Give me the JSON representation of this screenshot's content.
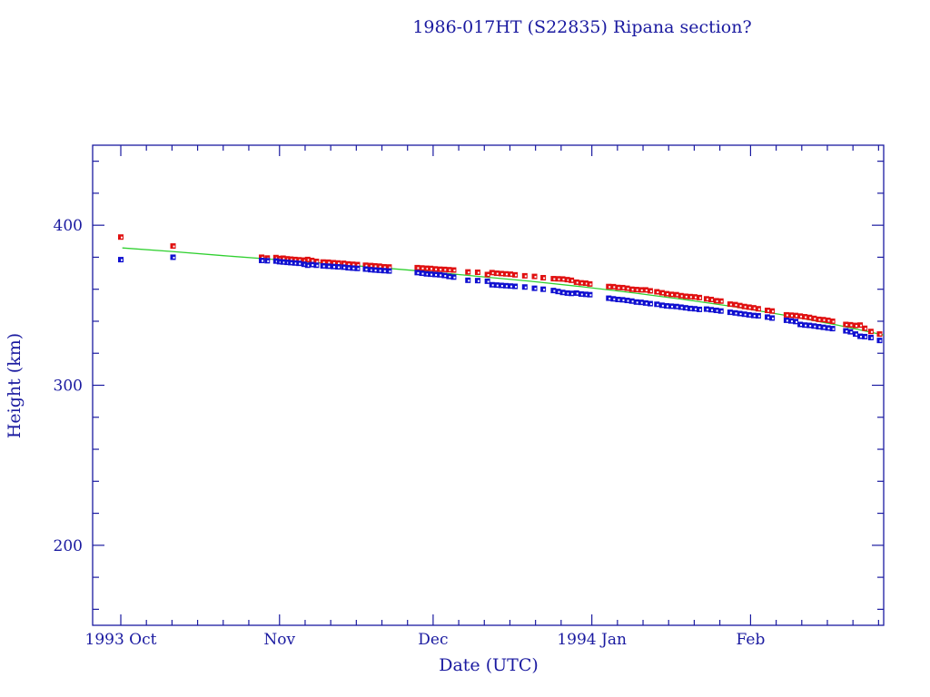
{
  "chart_data": {
    "type": "scatter",
    "title": "1986-017HT (S22835) Ripana section?",
    "xlabel": "Date (UTC)",
    "ylabel": "Height (km)",
    "x_units": "days since 1993 Oct 1",
    "xlim": [
      -5.5,
      149
    ],
    "ylim": [
      150,
      450
    ],
    "y_major_ticks": [
      200,
      300,
      400
    ],
    "y_minor_step": 20,
    "x_major_ticks": [
      {
        "day": 0,
        "label": "1993 Oct"
      },
      {
        "day": 31,
        "label": "Nov"
      },
      {
        "day": 61,
        "label": "Dec"
      },
      {
        "day": 92,
        "label": "1994 Jan"
      },
      {
        "day": 123,
        "label": "Feb"
      }
    ],
    "x_minor_step_days": 5,
    "grid": false,
    "colors": {
      "axis": "#1a1aa0",
      "apogee": "#e01010",
      "perigee": "#1010d0",
      "fit": "#30d030"
    },
    "series": [
      {
        "name": "Apogee",
        "color": "#e01010",
        "marker": "square",
        "points": [
          [
            0,
            392.6
          ],
          [
            10.2,
            387.0
          ],
          [
            27.5,
            380.0
          ],
          [
            28.6,
            379.5
          ],
          [
            30.3,
            379.8
          ],
          [
            31.0,
            379.2
          ],
          [
            31.7,
            379.4
          ],
          [
            32.5,
            379.0
          ],
          [
            33.2,
            378.8
          ],
          [
            34.0,
            378.6
          ],
          [
            34.8,
            378.4
          ],
          [
            35.8,
            378.2
          ],
          [
            36.5,
            378.6
          ],
          [
            37.3,
            378.0
          ],
          [
            38.2,
            377.4
          ],
          [
            39.5,
            377.0
          ],
          [
            40.5,
            376.9
          ],
          [
            41.5,
            376.6
          ],
          [
            42.4,
            376.4
          ],
          [
            43.5,
            376.2
          ],
          [
            44.4,
            375.8
          ],
          [
            45.3,
            375.6
          ],
          [
            46.2,
            375.4
          ],
          [
            47.8,
            375.0
          ],
          [
            48.8,
            374.8
          ],
          [
            49.6,
            374.6
          ],
          [
            50.5,
            374.4
          ],
          [
            51.4,
            374.0
          ],
          [
            52.4,
            373.9
          ],
          [
            57.9,
            373.5
          ],
          [
            58.8,
            373.3
          ],
          [
            59.7,
            373.1
          ],
          [
            60.5,
            373.0
          ],
          [
            61.4,
            372.7
          ],
          [
            62.3,
            372.5
          ],
          [
            63.2,
            372.4
          ],
          [
            64.1,
            372.2
          ],
          [
            65.0,
            372.0
          ],
          [
            67.8,
            370.8
          ],
          [
            69.7,
            370.6
          ],
          [
            71.6,
            369.2
          ],
          [
            72.5,
            370.4
          ],
          [
            73.4,
            370.0
          ],
          [
            74.3,
            369.8
          ],
          [
            75.2,
            369.6
          ],
          [
            76.1,
            369.4
          ],
          [
            77.0,
            369.0
          ],
          [
            78.9,
            368.4
          ],
          [
            80.8,
            368.0
          ],
          [
            82.5,
            367.2
          ],
          [
            84.5,
            366.6
          ],
          [
            85.4,
            366.5
          ],
          [
            86.3,
            366.4
          ],
          [
            87.2,
            366.0
          ],
          [
            88.0,
            365.6
          ],
          [
            89.0,
            364.4
          ],
          [
            89.9,
            364.0
          ],
          [
            90.8,
            363.8
          ],
          [
            91.6,
            363.3
          ],
          [
            95.3,
            361.7
          ],
          [
            96.2,
            361.6
          ],
          [
            97.1,
            361.1
          ],
          [
            98.0,
            361.0
          ],
          [
            98.9,
            360.6
          ],
          [
            99.8,
            360.0
          ],
          [
            100.7,
            359.8
          ],
          [
            101.6,
            359.6
          ],
          [
            102.5,
            359.6
          ],
          [
            103.4,
            359.0
          ],
          [
            104.7,
            358.4
          ],
          [
            105.7,
            357.8
          ],
          [
            106.6,
            357.2
          ],
          [
            107.5,
            356.8
          ],
          [
            108.5,
            356.6
          ],
          [
            109.4,
            356.0
          ],
          [
            110.3,
            355.6
          ],
          [
            111.2,
            355.4
          ],
          [
            112.1,
            355.2
          ],
          [
            113.0,
            354.8
          ],
          [
            114.4,
            354.0
          ],
          [
            115.3,
            353.6
          ],
          [
            116.3,
            352.8
          ],
          [
            117.2,
            352.6
          ],
          [
            119.0,
            350.7
          ],
          [
            120.0,
            350.4
          ],
          [
            120.9,
            349.8
          ],
          [
            121.8,
            349.2
          ],
          [
            122.7,
            348.8
          ],
          [
            123.6,
            348.4
          ],
          [
            124.5,
            347.8
          ],
          [
            126.3,
            346.8
          ],
          [
            127.2,
            346.4
          ],
          [
            130.0,
            344.0
          ],
          [
            130.9,
            343.8
          ],
          [
            131.8,
            343.6
          ],
          [
            132.7,
            343.2
          ],
          [
            133.6,
            342.8
          ],
          [
            134.5,
            342.4
          ],
          [
            135.4,
            341.8
          ],
          [
            136.3,
            341.2
          ],
          [
            137.2,
            341.0
          ],
          [
            138.1,
            340.6
          ],
          [
            139.0,
            340.0
          ],
          [
            141.6,
            338.0
          ],
          [
            142.5,
            337.8
          ],
          [
            143.5,
            337.4
          ],
          [
            144.4,
            337.6
          ],
          [
            145.3,
            335.6
          ],
          [
            146.5,
            333.6
          ],
          [
            148.2,
            332.0
          ]
        ]
      },
      {
        "name": "Perigee",
        "color": "#1010d0",
        "marker": "square",
        "points": [
          [
            0,
            378.5
          ],
          [
            10.2,
            380.0
          ],
          [
            27.5,
            378.0
          ],
          [
            28.6,
            377.8
          ],
          [
            30.3,
            377.6
          ],
          [
            31.0,
            377.2
          ],
          [
            31.7,
            377.0
          ],
          [
            32.5,
            376.8
          ],
          [
            33.2,
            376.6
          ],
          [
            34.0,
            376.4
          ],
          [
            34.8,
            376.2
          ],
          [
            35.8,
            375.6
          ],
          [
            36.5,
            375.0
          ],
          [
            37.3,
            375.4
          ],
          [
            38.2,
            375.0
          ],
          [
            39.5,
            374.6
          ],
          [
            40.5,
            374.4
          ],
          [
            41.5,
            374.2
          ],
          [
            42.4,
            374.0
          ],
          [
            43.5,
            373.8
          ],
          [
            44.4,
            373.4
          ],
          [
            45.3,
            373.2
          ],
          [
            46.2,
            373.0
          ],
          [
            47.8,
            372.6
          ],
          [
            48.8,
            372.2
          ],
          [
            49.6,
            372.0
          ],
          [
            50.5,
            371.8
          ],
          [
            51.4,
            371.6
          ],
          [
            52.4,
            371.4
          ],
          [
            57.9,
            370.4
          ],
          [
            58.8,
            370.0
          ],
          [
            59.7,
            369.6
          ],
          [
            60.5,
            369.4
          ],
          [
            61.4,
            369.2
          ],
          [
            62.3,
            369.0
          ],
          [
            63.2,
            368.6
          ],
          [
            64.1,
            368.0
          ],
          [
            65.0,
            367.6
          ],
          [
            67.8,
            365.6
          ],
          [
            69.7,
            365.4
          ],
          [
            71.6,
            365.0
          ],
          [
            72.5,
            362.8
          ],
          [
            73.4,
            362.6
          ],
          [
            74.3,
            362.4
          ],
          [
            75.2,
            362.2
          ],
          [
            76.1,
            362.0
          ],
          [
            77.0,
            361.8
          ],
          [
            78.9,
            361.4
          ],
          [
            80.8,
            360.6
          ],
          [
            82.5,
            360.0
          ],
          [
            84.5,
            359.2
          ],
          [
            85.4,
            358.6
          ],
          [
            86.3,
            358.0
          ],
          [
            87.2,
            357.6
          ],
          [
            88.0,
            357.4
          ],
          [
            89.0,
            357.6
          ],
          [
            89.9,
            357.0
          ],
          [
            90.8,
            356.8
          ],
          [
            91.6,
            356.6
          ],
          [
            95.3,
            354.4
          ],
          [
            96.2,
            354.0
          ],
          [
            97.1,
            353.6
          ],
          [
            98.0,
            353.4
          ],
          [
            98.9,
            353.0
          ],
          [
            99.8,
            352.6
          ],
          [
            100.7,
            352.0
          ],
          [
            101.6,
            351.8
          ],
          [
            102.5,
            351.4
          ],
          [
            103.4,
            351.0
          ],
          [
            104.7,
            350.6
          ],
          [
            105.7,
            350.0
          ],
          [
            106.6,
            349.6
          ],
          [
            107.5,
            349.4
          ],
          [
            108.5,
            349.2
          ],
          [
            109.4,
            348.8
          ],
          [
            110.3,
            348.4
          ],
          [
            111.2,
            348.0
          ],
          [
            112.1,
            347.8
          ],
          [
            113.0,
            347.4
          ],
          [
            114.4,
            347.6
          ],
          [
            115.3,
            347.2
          ],
          [
            116.3,
            346.8
          ],
          [
            117.2,
            346.4
          ],
          [
            119.0,
            345.6
          ],
          [
            120.0,
            345.2
          ],
          [
            120.9,
            344.8
          ],
          [
            121.8,
            344.4
          ],
          [
            122.7,
            344.0
          ],
          [
            123.6,
            343.6
          ],
          [
            124.5,
            343.4
          ],
          [
            126.3,
            342.6
          ],
          [
            127.2,
            342.0
          ],
          [
            130.0,
            340.6
          ],
          [
            130.9,
            340.2
          ],
          [
            131.8,
            339.8
          ],
          [
            132.7,
            338.0
          ],
          [
            133.6,
            337.6
          ],
          [
            134.5,
            337.4
          ],
          [
            135.4,
            337.0
          ],
          [
            136.3,
            336.6
          ],
          [
            137.2,
            336.2
          ],
          [
            138.1,
            335.8
          ],
          [
            139.0,
            335.4
          ],
          [
            141.6,
            334.0
          ],
          [
            142.5,
            333.4
          ],
          [
            143.5,
            332.0
          ],
          [
            144.4,
            330.6
          ],
          [
            145.3,
            330.4
          ],
          [
            146.5,
            329.8
          ],
          [
            148.2,
            328.0
          ]
        ]
      },
      {
        "name": "Fit",
        "color": "#30d030",
        "type": "line",
        "points": [
          [
            0.3,
            385.8
          ],
          [
            10,
            383.6
          ],
          [
            20,
            381.0
          ],
          [
            30,
            378.6
          ],
          [
            40,
            376.2
          ],
          [
            50,
            373.6
          ],
          [
            60,
            371.0
          ],
          [
            70,
            368.0
          ],
          [
            80,
            365.0
          ],
          [
            90,
            361.6
          ],
          [
            100,
            357.8
          ],
          [
            110,
            353.6
          ],
          [
            120,
            349.0
          ],
          [
            130,
            343.6
          ],
          [
            140,
            337.6
          ],
          [
            149,
            331.4
          ]
        ]
      }
    ]
  }
}
